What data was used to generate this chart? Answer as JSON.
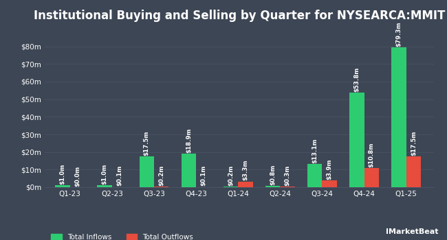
{
  "title": "Institutional Buying and Selling by Quarter for NYSEARCA:MMIT",
  "quarters": [
    "Q1-23",
    "Q2-23",
    "Q3-23",
    "Q4-23",
    "Q1-24",
    "Q2-24",
    "Q3-24",
    "Q4-24",
    "Q1-25"
  ],
  "inflows": [
    1.0,
    1.0,
    17.5,
    18.9,
    0.2,
    0.8,
    13.1,
    53.8,
    79.3
  ],
  "outflows": [
    0.05,
    0.1,
    0.2,
    0.1,
    3.3,
    0.3,
    3.9,
    10.8,
    17.5
  ],
  "inflow_labels": [
    "$1.0m",
    "$1.0m",
    "$17.5m",
    "$18.9m",
    "$0.2m",
    "$0.8m",
    "$13.1m",
    "$53.8m",
    "$79.3m"
  ],
  "outflow_labels": [
    "$0.0m",
    "$0.1m",
    "$0.2m",
    "$0.1m",
    "$3.3m",
    "$0.3m",
    "$3.9m",
    "$10.8m",
    "$17.5m"
  ],
  "inflow_color": "#2ecc71",
  "outflow_color": "#e74c3c",
  "background_color": "#3d4654",
  "text_color": "#ffffff",
  "grid_color": "#4a5266",
  "yticks": [
    0,
    10,
    20,
    30,
    40,
    50,
    60,
    70,
    80
  ],
  "ytick_labels": [
    "$0m",
    "$10m",
    "$20m",
    "$30m",
    "$40m",
    "$50m",
    "$60m",
    "$70m",
    "$80m"
  ],
  "ylim": [
    0,
    90
  ],
  "bar_width": 0.35,
  "legend_inflow": "Total Inflows",
  "legend_outflow": "Total Outflows",
  "title_fontsize": 12,
  "label_fontsize": 6.2,
  "tick_fontsize": 7.5,
  "legend_fontsize": 7.5
}
